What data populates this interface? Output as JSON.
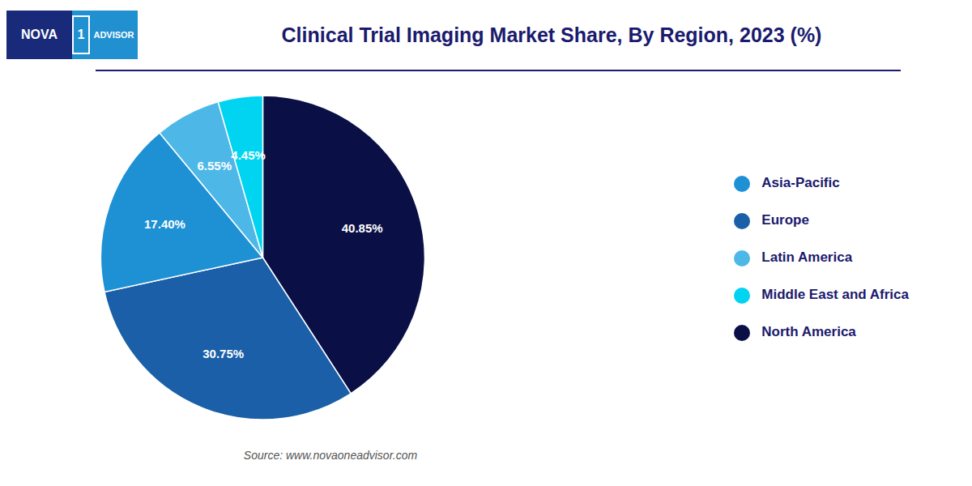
{
  "chart_data": {
    "type": "pie",
    "title": "Clinical Trial Imaging Market Share, By Region, 2023 (%)",
    "categories": [
      "North America",
      "Europe",
      "Asia-Pacific",
      "Latin America",
      "Middle East and Africa"
    ],
    "values": [
      40.85,
      30.75,
      17.4,
      6.55,
      4.45
    ],
    "value_labels": [
      "40.85%",
      "30.75%",
      "17.40%",
      "6.55%",
      "4.45%"
    ],
    "data_labels": true,
    "colors": [
      "#0a1045",
      "#1a5fa8",
      "#1e90d4",
      "#4db8e8",
      "#00d4f0"
    ],
    "legend": "right",
    "annotations": [
      "NOVA",
      "1",
      "ADVISOR",
      "Source: www.novaoneadvisor.com"
    ]
  }
}
